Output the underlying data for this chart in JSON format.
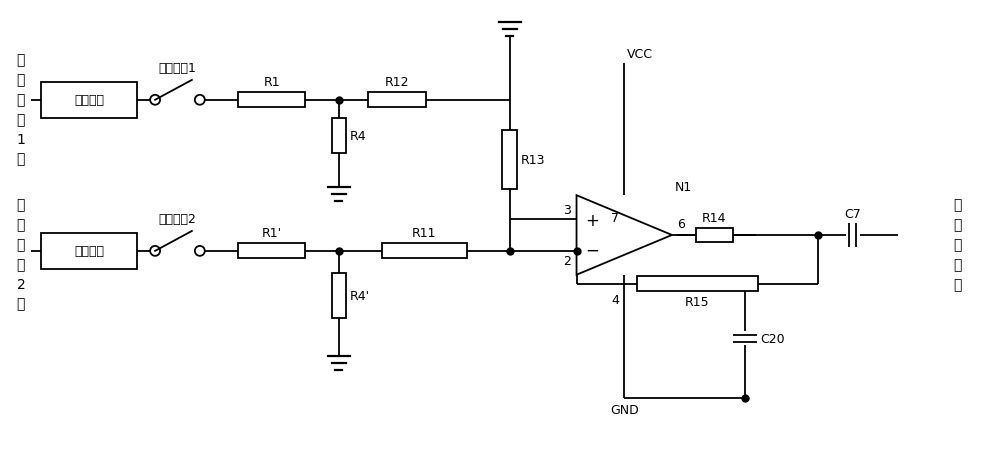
{
  "bg_color": "#ffffff",
  "line_color": "#000000",
  "text_color": "#000000",
  "font_size": 9,
  "fig_width": 10.0,
  "fig_height": 4.6,
  "labels": {
    "signal1_in": [
      "测距",
      "信号",
      "1",
      "入"
    ],
    "signal2_in": [
      "测距",
      "信号",
      "2",
      "入"
    ],
    "signal_out": [
      "测距",
      "信号",
      "出"
    ],
    "box1": "接口电路",
    "box2": "接口电路",
    "switch1": "测距开关1",
    "switch2": "测距开关2",
    "R1": "R1",
    "R1p": "R1'",
    "R4": "R4",
    "R4p": "R4'",
    "R11": "R11",
    "R12": "R12",
    "R13": "R13",
    "R14": "R14",
    "R15": "R15",
    "C7": "C7",
    "C20": "C20",
    "VCC": "VCC",
    "GND": "GND",
    "N1": "N1",
    "pin2": "2",
    "pin3": "3",
    "pin4": "4",
    "pin6": "6",
    "pin7": "7"
  }
}
